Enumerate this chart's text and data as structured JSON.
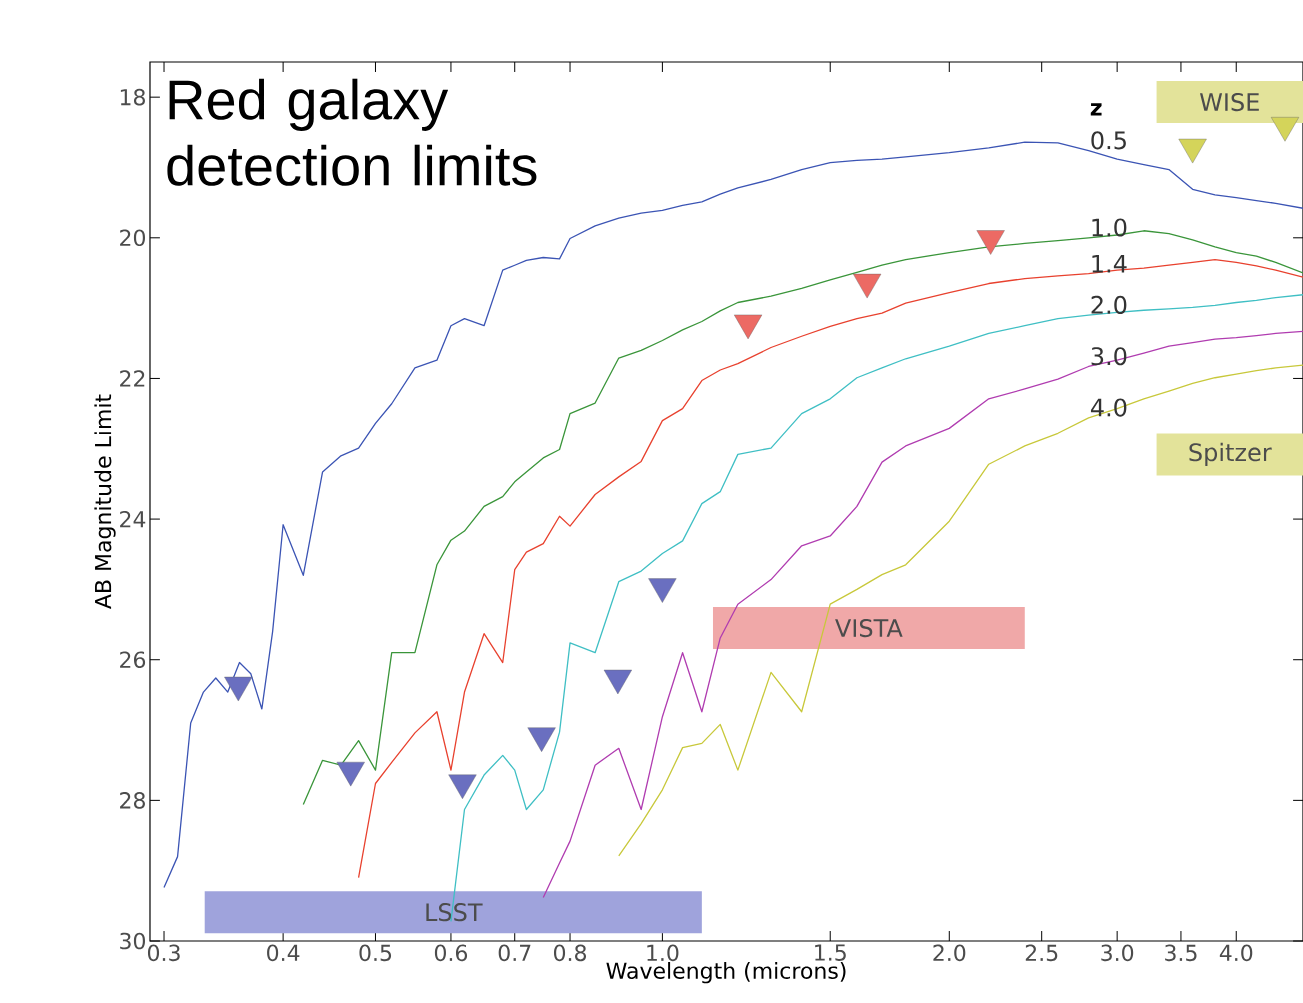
{
  "chart_data": {
    "type": "line",
    "title": "Red galaxy detection limits",
    "xlabel": "Wavelength (microns)",
    "ylabel": "AB Magnitude Limit",
    "legend_title": "z",
    "log": "x",
    "marker": "none",
    "xlim": [
      0.29,
      4.7
    ],
    "ylim": [
      30,
      17.5
    ],
    "xticks": [
      0.3,
      0.4,
      0.5,
      0.6,
      0.7,
      0.8,
      {
        "value": 1,
        "label": "1.0"
      },
      1.5,
      {
        "value": 2,
        "label": "2.0"
      },
      2.5,
      {
        "value": 3,
        "label": "3.0"
      },
      3.5,
      {
        "value": 4,
        "label": "4.0"
      }
    ],
    "yticks": [
      18,
      20,
      22,
      24,
      26,
      28,
      30
    ],
    "x": [
      0.3,
      0.31,
      0.32,
      0.33,
      0.34,
      0.35,
      0.36,
      0.37,
      0.38,
      0.39,
      0.4,
      0.42,
      0.44,
      0.46,
      0.48,
      0.5,
      0.52,
      0.55,
      0.58,
      0.6,
      0.62,
      0.65,
      0.68,
      0.7,
      0.72,
      0.75,
      0.78,
      0.8,
      0.85,
      0.9,
      0.95,
      1.0,
      1.05,
      1.1,
      1.15,
      1.2,
      1.3,
      1.4,
      1.5,
      1.6,
      1.7,
      1.8,
      2.0,
      2.2,
      2.4,
      2.6,
      2.8,
      3.0,
      3.2,
      3.4,
      3.6,
      3.8,
      4.0,
      4.2,
      4.4,
      4.7
    ],
    "series": [
      {
        "type": "line",
        "name": "LSST",
        "color": "#9fa3dc",
        "x": [
          0.331,
          1.1
        ],
        "values": [
          29.59,
          29.59
        ]
      },
      {
        "type": "line",
        "name": "VISTA",
        "color": "#f0a8a8",
        "x": [
          1.13,
          2.4
        ],
        "values": [
          25.55,
          25.55
        ]
      },
      {
        "type": "line",
        "name": "WISE",
        "color": "#e3e39a",
        "x": [
          3.3,
          4.7
        ],
        "values": [
          18.07,
          18.07
        ]
      },
      {
        "type": "line",
        "name": "Spitzer",
        "color": "#e3e39a",
        "x": [
          3.3,
          4.7
        ],
        "values": [
          23.08,
          23.08
        ]
      },
      {
        "name": "0.5",
        "color": "#3b54b4",
        "values": [
          29.24,
          28.8,
          26.9,
          26.46,
          26.26,
          26.46,
          26.04,
          26.2,
          26.7,
          25.6,
          24.08,
          24.8,
          23.33,
          23.1,
          22.99,
          22.64,
          22.36,
          21.85,
          21.74,
          21.25,
          21.15,
          21.25,
          20.46,
          20.39,
          20.32,
          20.28,
          20.3,
          20.01,
          19.83,
          19.72,
          19.65,
          19.61,
          19.54,
          19.49,
          19.38,
          19.29,
          19.17,
          19.03,
          18.93,
          18.9,
          18.88,
          18.85,
          18.79,
          18.72,
          18.64,
          18.65,
          18.76,
          18.88,
          18.96,
          19.03,
          19.31,
          19.39,
          19.43,
          19.47,
          19.51,
          19.58
        ]
      },
      {
        "name": "1.0",
        "color": "#3a953a",
        "values": [
          null,
          null,
          null,
          null,
          null,
          null,
          null,
          null,
          null,
          null,
          null,
          28.06,
          27.43,
          27.5,
          27.15,
          27.57,
          25.9,
          25.9,
          24.65,
          24.3,
          24.17,
          23.82,
          23.68,
          23.47,
          23.33,
          23.13,
          23.01,
          22.5,
          22.35,
          21.71,
          21.6,
          21.46,
          21.31,
          21.19,
          21.04,
          20.92,
          20.83,
          20.72,
          20.6,
          20.49,
          20.39,
          20.31,
          20.21,
          20.13,
          20.08,
          20.04,
          20.0,
          19.96,
          19.9,
          19.94,
          20.03,
          20.13,
          20.21,
          20.26,
          20.35,
          20.5
        ]
      },
      {
        "name": "1.4",
        "color": "#e8412e",
        "values": [
          null,
          null,
          null,
          null,
          null,
          null,
          null,
          null,
          null,
          null,
          null,
          null,
          null,
          null,
          29.1,
          27.76,
          27.46,
          27.04,
          26.74,
          27.57,
          26.46,
          25.63,
          26.04,
          24.72,
          24.47,
          24.35,
          23.96,
          24.1,
          23.65,
          23.4,
          23.18,
          22.6,
          22.43,
          22.03,
          21.88,
          21.79,
          21.56,
          21.4,
          21.26,
          21.15,
          21.07,
          20.93,
          20.78,
          20.65,
          20.58,
          20.54,
          20.51,
          20.46,
          20.43,
          20.39,
          20.35,
          20.31,
          20.35,
          20.4,
          20.46,
          20.56
        ]
      },
      {
        "name": "2.0",
        "color": "#3fbfc4",
        "values": [
          null,
          null,
          null,
          null,
          null,
          null,
          null,
          null,
          null,
          null,
          null,
          null,
          null,
          null,
          null,
          null,
          null,
          null,
          null,
          29.72,
          28.13,
          27.64,
          27.36,
          27.57,
          28.13,
          27.85,
          27.03,
          25.76,
          25.9,
          24.89,
          24.74,
          24.49,
          24.31,
          23.78,
          23.61,
          23.08,
          22.99,
          22.5,
          22.29,
          21.99,
          21.85,
          21.72,
          21.54,
          21.36,
          21.25,
          21.15,
          21.1,
          21.06,
          21.03,
          21.01,
          20.99,
          20.96,
          20.92,
          20.89,
          20.85,
          20.81
        ]
      },
      {
        "name": "3.0",
        "color": "#b03cb0",
        "values": [
          null,
          null,
          null,
          null,
          null,
          null,
          null,
          null,
          null,
          null,
          null,
          null,
          null,
          null,
          null,
          null,
          null,
          null,
          null,
          null,
          null,
          null,
          null,
          null,
          null,
          29.38,
          28.89,
          28.58,
          27.5,
          27.26,
          28.13,
          26.81,
          25.9,
          26.74,
          25.69,
          25.21,
          24.86,
          24.38,
          24.24,
          23.82,
          23.19,
          22.96,
          22.71,
          22.29,
          22.15,
          22.01,
          21.83,
          21.74,
          21.64,
          21.54,
          21.49,
          21.44,
          21.42,
          21.39,
          21.36,
          21.33
        ]
      },
      {
        "name": "4.0",
        "color": "#c8c83a",
        "values": [
          null,
          null,
          null,
          null,
          null,
          null,
          null,
          null,
          null,
          null,
          null,
          null,
          null,
          null,
          null,
          null,
          null,
          null,
          null,
          null,
          null,
          null,
          null,
          null,
          null,
          null,
          null,
          null,
          null,
          28.79,
          28.33,
          27.85,
          27.25,
          27.19,
          26.92,
          27.57,
          26.18,
          26.74,
          25.21,
          25.0,
          24.79,
          24.65,
          24.03,
          23.22,
          22.96,
          22.78,
          22.56,
          22.43,
          22.29,
          22.18,
          22.07,
          21.99,
          21.94,
          21.89,
          21.85,
          21.81
        ]
      },
      {
        "type": "scatter",
        "marker": "triangle",
        "color": "#6a6fc0",
        "x": [
          0.359,
          0.471,
          0.617,
          0.747,
          0.898,
          1.0
        ],
        "values": [
          26.36,
          27.57,
          27.75,
          27.08,
          26.26,
          24.96
        ]
      },
      {
        "type": "scatter",
        "marker": "triangle",
        "color": "#ec6a64",
        "x": [
          1.23,
          1.64,
          2.21
        ],
        "values": [
          21.21,
          20.63,
          20.01
        ]
      },
      {
        "type": "scatter",
        "marker": "triangle",
        "color": "#d4d45a",
        "x": [
          3.6,
          4.5
        ],
        "values": [
          18.71,
          18.4
        ]
      }
    ]
  }
}
